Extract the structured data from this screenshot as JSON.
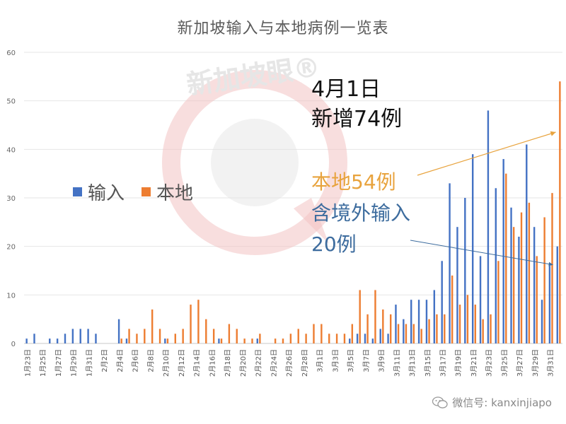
{
  "watermark": "新加坡眼®",
  "footer": {
    "text": "微信号: kanxinjiapo",
    "icon": "wechat-icon"
  },
  "annotation": {
    "date": "4月1日",
    "total": "新增74例",
    "local": "本地54例",
    "imported_line1": "含境外输入",
    "imported_line2": "20例",
    "local_color": "#e8a33d",
    "imported_color": "#3d6c9e"
  },
  "chart_data": {
    "type": "bar",
    "title": "新加坡输入与本地病例一览表",
    "ylim": [
      0,
      60
    ],
    "yticks": [
      0,
      10,
      20,
      30,
      40,
      50,
      60
    ],
    "grid": true,
    "legend_placement": "left-middle",
    "categories": [
      "1月23日",
      "1月24日",
      "1月25日",
      "1月26日",
      "1月27日",
      "1月28日",
      "1月29日",
      "1月30日",
      "1月31日",
      "2月1日",
      "2月2日",
      "2月3日",
      "2月4日",
      "2月5日",
      "2月6日",
      "2月7日",
      "2月8日",
      "2月9日",
      "2月10日",
      "2月11日",
      "2月12日",
      "2月13日",
      "2月14日",
      "2月15日",
      "2月16日",
      "2月17日",
      "2月18日",
      "2月19日",
      "2月20日",
      "2月21日",
      "2月22日",
      "2月23日",
      "2月24日",
      "2月25日",
      "2月26日",
      "2月27日",
      "2月28日",
      "2月29日",
      "3月1日",
      "3月2日",
      "3月3日",
      "3月4日",
      "3月5日",
      "3月6日",
      "3月7日",
      "3月8日",
      "3月9日",
      "3月10日",
      "3月11日",
      "3月12日",
      "3月13日",
      "3月14日",
      "3月15日",
      "3月16日",
      "3月17日",
      "3月18日",
      "3月19日",
      "3月20日",
      "3月21日",
      "3月22日",
      "3月23日",
      "3月24日",
      "3月25日",
      "3月26日",
      "3月27日",
      "3月28日",
      "3月29日",
      "3月30日",
      "3月31日",
      "4月1日"
    ],
    "shown_tick_labels": [
      "1月23日",
      "1月25日",
      "1月27日",
      "1月29日",
      "1月31日",
      "2月2日",
      "2月4日",
      "2月6日",
      "2月8日",
      "2月10日",
      "2月12日",
      "2月14日",
      "2月16日",
      "2月18日",
      "2月20日",
      "2月22日",
      "2月24日",
      "2月26日",
      "2月28日",
      "3月1日",
      "3月3日",
      "3月5日",
      "3月7日",
      "3月9日",
      "3月11日",
      "3月13日",
      "3月15日",
      "3月17日",
      "3月19日",
      "3月21日",
      "3月23日",
      "3月25日",
      "3月27日",
      "3月29日",
      "3月31日"
    ],
    "series": [
      {
        "name": "输入",
        "color": "#4472c4",
        "values": [
          1,
          2,
          0,
          1,
          1,
          2,
          3,
          3,
          3,
          2,
          0,
          0,
          5,
          1,
          0,
          0,
          0,
          0,
          1,
          0,
          0,
          0,
          0,
          0,
          0,
          1,
          0,
          0,
          0,
          0,
          1,
          0,
          0,
          0,
          0,
          0,
          0,
          0,
          0,
          0,
          0,
          0,
          1,
          2,
          2,
          1,
          3,
          2,
          8,
          5,
          9,
          9,
          9,
          11,
          17,
          33,
          24,
          30,
          39,
          18,
          48,
          32,
          38,
          28,
          22,
          41,
          24,
          9,
          16,
          20
        ]
      },
      {
        "name": "本地",
        "color": "#ed7d31",
        "values": [
          0,
          0,
          0,
          0,
          0,
          0,
          0,
          0,
          0,
          0,
          0,
          0,
          1,
          3,
          2,
          3,
          7,
          3,
          1,
          2,
          3,
          8,
          9,
          5,
          3,
          1,
          4,
          3,
          1,
          1,
          2,
          0,
          1,
          1,
          2,
          3,
          2,
          4,
          4,
          2,
          2,
          2,
          4,
          11,
          6,
          11,
          7,
          6,
          4,
          4,
          4,
          3,
          5,
          6,
          6,
          14,
          8,
          10,
          8,
          5,
          6,
          17,
          35,
          24,
          27,
          29,
          18,
          26,
          31,
          54
        ]
      }
    ]
  }
}
